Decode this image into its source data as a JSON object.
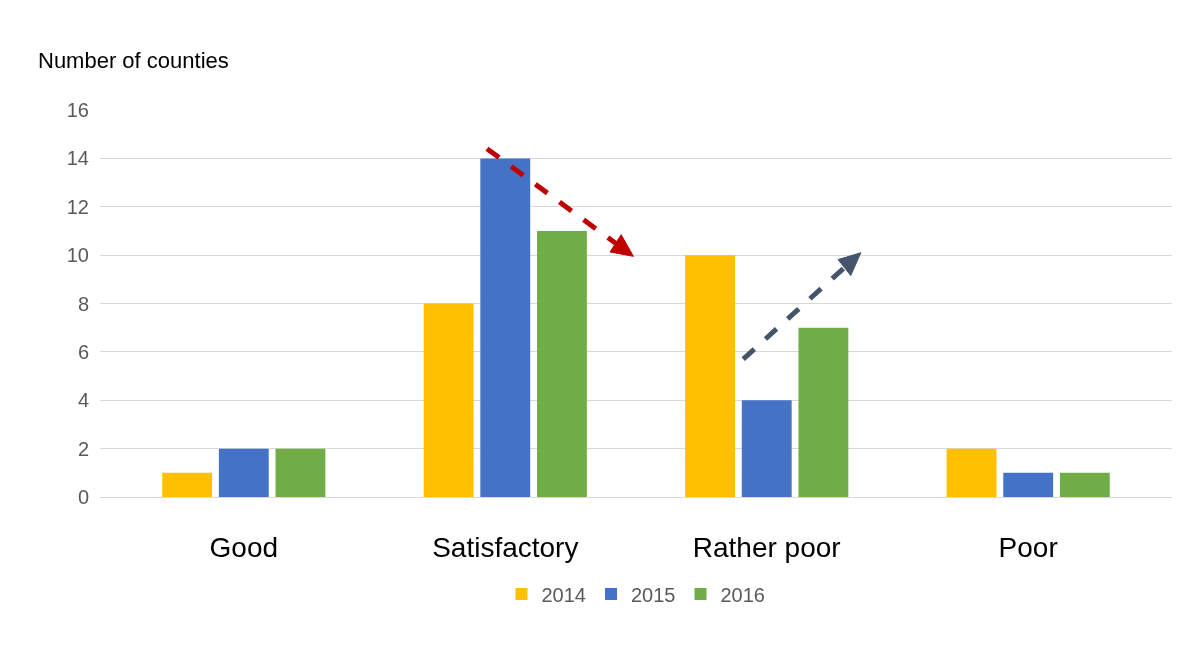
{
  "chart_data": {
    "type": "bar",
    "ylabel": "Number of counties",
    "categories": [
      "Good",
      "Satisfactory",
      "Rather poor",
      "Poor"
    ],
    "series": [
      {
        "name": "2014",
        "color": "#ffc000",
        "values": [
          1,
          8,
          10,
          2
        ]
      },
      {
        "name": "2015",
        "color": "#4472c4",
        "values": [
          2,
          14,
          4,
          1
        ]
      },
      {
        "name": "2016",
        "color": "#70ad47",
        "values": [
          2,
          11,
          7,
          1
        ]
      }
    ],
    "ylim": [
      0,
      16
    ],
    "yticks": [
      0,
      2,
      4,
      6,
      8,
      10,
      12,
      14,
      16
    ],
    "grid": "y",
    "legend": "bottom"
  }
}
